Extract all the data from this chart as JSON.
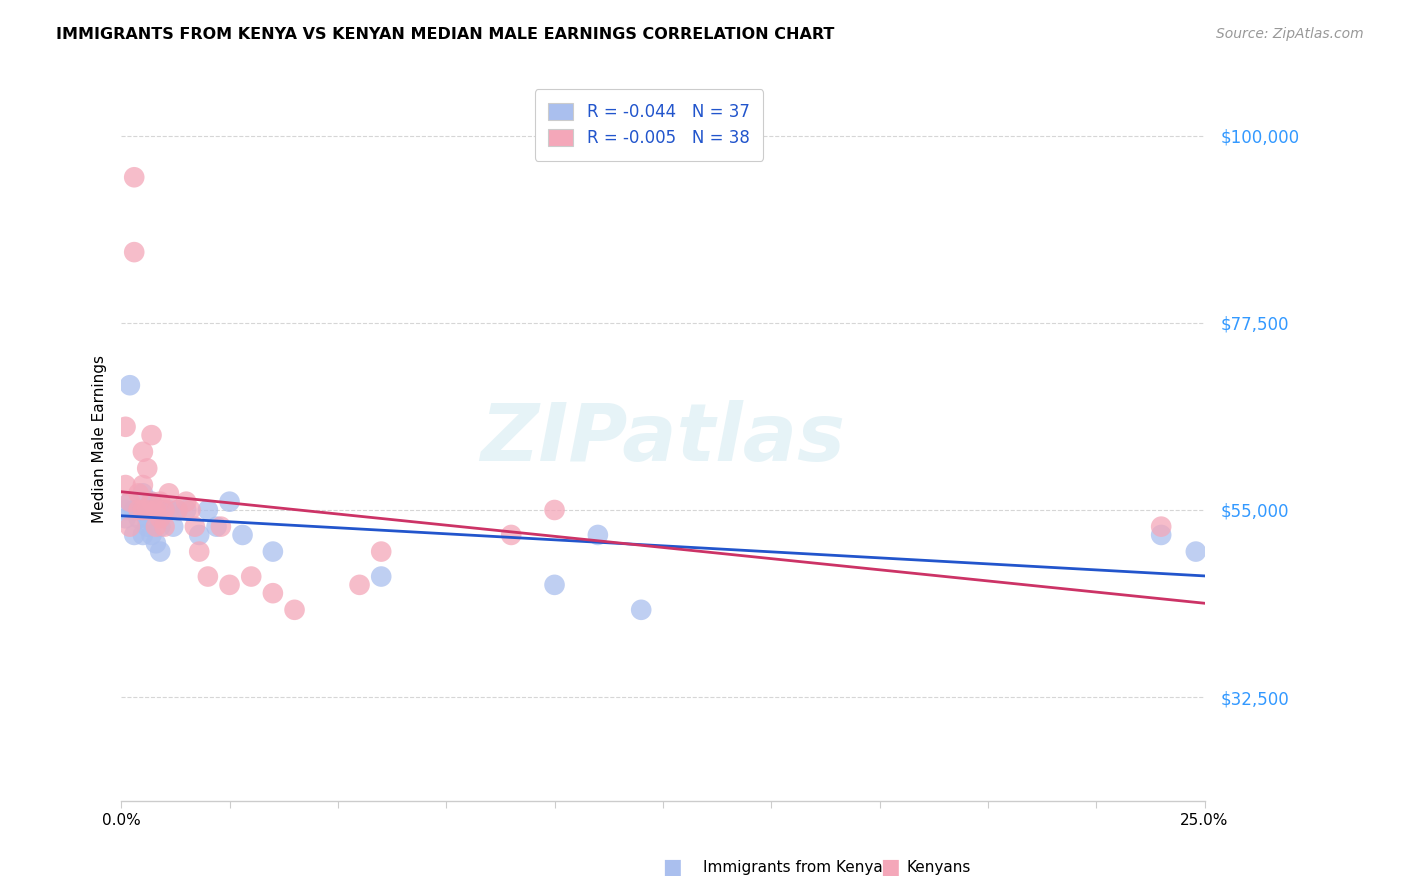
{
  "title": "IMMIGRANTS FROM KENYA VS KENYAN MEDIAN MALE EARNINGS CORRELATION CHART",
  "source": "Source: ZipAtlas.com",
  "ylabel": "Median Male Earnings",
  "y_ticks": [
    100000,
    77500,
    55000,
    32500
  ],
  "y_tick_labels": [
    "$100,000",
    "$77,500",
    "$55,000",
    "$32,500"
  ],
  "y_tick_color": "#3399ff",
  "xmin": 0.0,
  "xmax": 0.25,
  "ymin": 20000,
  "ymax": 107000,
  "blue_color": "#aabfee",
  "pink_color": "#f4a7b9",
  "blue_line_color": "#2255cc",
  "pink_line_color": "#cc3366",
  "blue_R": "-0.044",
  "blue_N": "37",
  "pink_R": "-0.005",
  "pink_N": "38",
  "legend_label_blue": "Immigrants from Kenya",
  "legend_label_pink": "Kenyans",
  "watermark": "ZIPatlas",
  "blue_scatter_x": [
    0.001,
    0.001,
    0.002,
    0.002,
    0.003,
    0.003,
    0.004,
    0.004,
    0.005,
    0.005,
    0.005,
    0.006,
    0.006,
    0.006,
    0.007,
    0.007,
    0.008,
    0.008,
    0.009,
    0.009,
    0.01,
    0.011,
    0.012,
    0.013,
    0.015,
    0.018,
    0.02,
    0.022,
    0.025,
    0.028,
    0.035,
    0.06,
    0.1,
    0.11,
    0.12,
    0.24,
    0.248
  ],
  "blue_scatter_y": [
    55000,
    54000,
    70000,
    56000,
    55000,
    52000,
    55000,
    54000,
    57000,
    55000,
    52000,
    55000,
    54000,
    53000,
    56000,
    52000,
    55000,
    51000,
    53000,
    50000,
    55000,
    55000,
    53000,
    55000,
    55000,
    52000,
    55000,
    53000,
    56000,
    52000,
    50000,
    47000,
    46000,
    52000,
    43000,
    52000,
    50000
  ],
  "pink_scatter_x": [
    0.001,
    0.001,
    0.002,
    0.002,
    0.003,
    0.003,
    0.004,
    0.004,
    0.005,
    0.005,
    0.005,
    0.006,
    0.006,
    0.007,
    0.007,
    0.008,
    0.008,
    0.009,
    0.009,
    0.01,
    0.01,
    0.011,
    0.013,
    0.015,
    0.016,
    0.017,
    0.018,
    0.02,
    0.023,
    0.025,
    0.03,
    0.035,
    0.04,
    0.055,
    0.06,
    0.09,
    0.1,
    0.24
  ],
  "pink_scatter_y": [
    65000,
    58000,
    56000,
    53000,
    95000,
    86000,
    57000,
    55000,
    62000,
    58000,
    55000,
    60000,
    55000,
    64000,
    56000,
    55000,
    53000,
    56000,
    54000,
    55000,
    53000,
    57000,
    55000,
    56000,
    55000,
    53000,
    50000,
    47000,
    53000,
    46000,
    47000,
    45000,
    43000,
    46000,
    50000,
    52000,
    55000,
    53000
  ],
  "background_color": "#ffffff",
  "grid_color": "#cccccc",
  "x_ticks": [
    0.0,
    0.025,
    0.05,
    0.075,
    0.1,
    0.125,
    0.15,
    0.175,
    0.2,
    0.225,
    0.25
  ]
}
